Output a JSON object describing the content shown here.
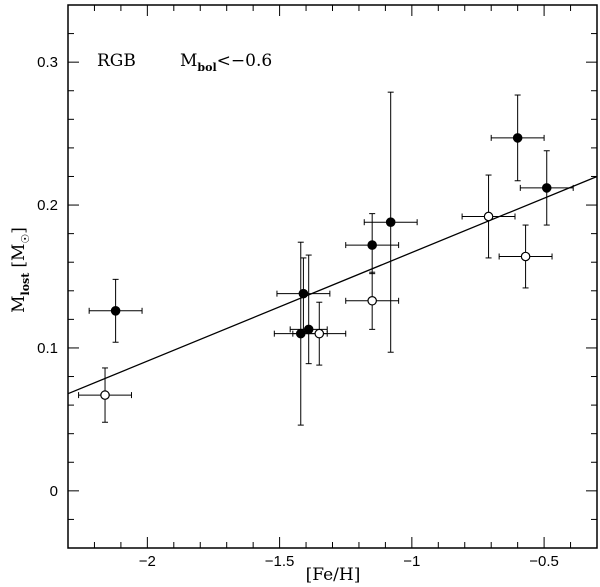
{
  "chart_data": {
    "type": "scatter",
    "title": "",
    "annotation_left": "RGB",
    "annotation_right_main": "M",
    "annotation_right_sub": "bol",
    "annotation_right_tail": "<−0.6",
    "xlabel": "[Fe/H]",
    "ylabel_main": "M",
    "ylabel_sub": "lost",
    "ylabel_unit": "[M",
    "ylabel_unit_close": "]",
    "xlim": [
      -2.3,
      -0.3
    ],
    "ylim": [
      -0.04,
      0.34
    ],
    "xticks": [
      -2,
      -1.5,
      -1,
      -0.5
    ],
    "xtick_labels": [
      "−2",
      "−1.5",
      "−1",
      "−0.5"
    ],
    "yticks": [
      0,
      0.1,
      0.2,
      0.3
    ],
    "ytick_labels": [
      "0",
      "0.1",
      "0.2",
      "0.3"
    ],
    "grid": false,
    "series": [
      {
        "marker": "filled-circle",
        "points": [
          {
            "x": -2.12,
            "y": 0.126,
            "xerr": 0.1,
            "yerr_low": 0.022,
            "yerr_high": 0.022
          },
          {
            "x": -1.41,
            "y": 0.138,
            "xerr": 0.1,
            "yerr_low": 0.025,
            "yerr_high": 0.025
          },
          {
            "x": -1.42,
            "y": 0.11,
            "xerr": 0.1,
            "yerr_low": 0.064,
            "yerr_high": 0.064
          },
          {
            "x": -1.39,
            "y": 0.113,
            "xerr": 0.07,
            "yerr_low": 0.024,
            "yerr_high": 0.052
          },
          {
            "x": -1.15,
            "y": 0.172,
            "xerr": 0.1,
            "yerr_low": 0.02,
            "yerr_high": 0.022
          },
          {
            "x": -1.08,
            "y": 0.188,
            "xerr": 0.1,
            "yerr_low": 0.091,
            "yerr_high": 0.091
          },
          {
            "x": -0.6,
            "y": 0.247,
            "xerr": 0.1,
            "yerr_low": 0.03,
            "yerr_high": 0.03
          },
          {
            "x": -0.49,
            "y": 0.212,
            "xerr": 0.1,
            "yerr_low": 0.026,
            "yerr_high": 0.026
          }
        ]
      },
      {
        "marker": "open-circle",
        "points": [
          {
            "x": -2.16,
            "y": 0.067,
            "xerr": 0.1,
            "yerr_low": 0.019,
            "yerr_high": 0.019
          },
          {
            "x": -1.35,
            "y": 0.11,
            "xerr": 0.1,
            "yerr_low": 0.022,
            "yerr_high": 0.022
          },
          {
            "x": -1.15,
            "y": 0.133,
            "xerr": 0.1,
            "yerr_low": 0.02,
            "yerr_high": 0.02
          },
          {
            "x": -0.71,
            "y": 0.192,
            "xerr": 0.1,
            "yerr_low": 0.029,
            "yerr_high": 0.029
          },
          {
            "x": -0.57,
            "y": 0.164,
            "xerr": 0.1,
            "yerr_low": 0.022,
            "yerr_high": 0.022
          }
        ]
      }
    ],
    "fit_line": {
      "x1": -2.3,
      "y1": 0.068,
      "x2": -0.3,
      "y2": 0.22
    }
  }
}
